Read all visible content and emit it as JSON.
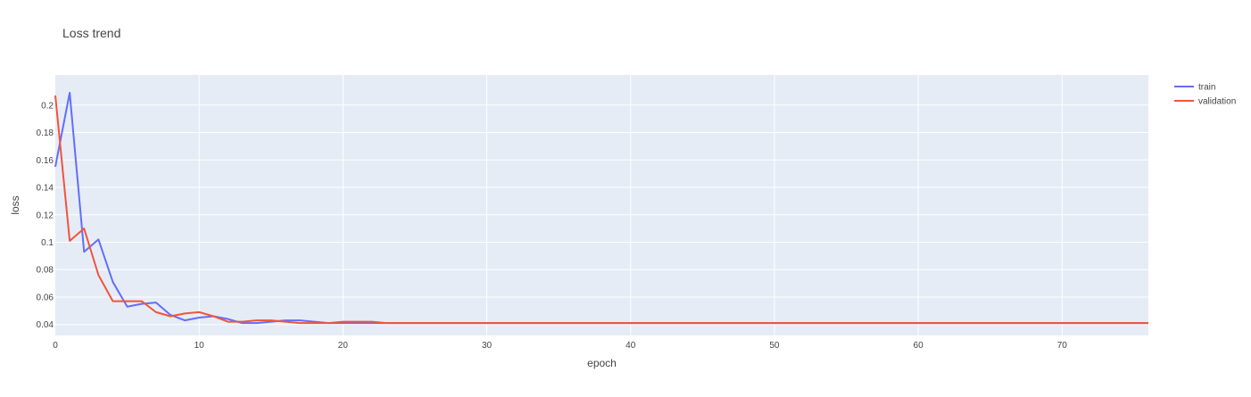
{
  "chart_data": {
    "type": "line",
    "title": "Loss trend",
    "xlabel": "epoch",
    "ylabel": "loss",
    "xlim": [
      0,
      76
    ],
    "ylim": [
      0.032,
      0.222
    ],
    "xticks": [
      0,
      10,
      20,
      30,
      40,
      50,
      60,
      70
    ],
    "yticks": [
      0.04,
      0.06,
      0.08,
      0.1,
      0.12,
      0.14,
      0.16,
      0.18,
      0.2
    ],
    "ytick_labels": [
      "0.04",
      "0.06",
      "0.08",
      "0.1",
      "0.12",
      "0.14",
      "0.16",
      "0.18",
      "0.2"
    ],
    "grid": true,
    "legend_position": "top-right",
    "background_color": "#E5ECF6",
    "series": [
      {
        "name": "train",
        "color": "#636EFA",
        "x": [
          0,
          1,
          2,
          3,
          4,
          5,
          6,
          7,
          8,
          9,
          10,
          11,
          12,
          13,
          14,
          15,
          16,
          17,
          18,
          19,
          20,
          21,
          22,
          23,
          24,
          25,
          26,
          27,
          28,
          29,
          30,
          31,
          32,
          33,
          34,
          35,
          36,
          37,
          38,
          39,
          40,
          41,
          42,
          43,
          44,
          45,
          46,
          47,
          48,
          49,
          50,
          51,
          52,
          53,
          54,
          55,
          56,
          57,
          58,
          59,
          60,
          61,
          62,
          63,
          64,
          65,
          66,
          67,
          68,
          69,
          70,
          71,
          72,
          73,
          74,
          75,
          76
        ],
        "values": [
          0.155,
          0.209,
          0.093,
          0.102,
          0.071,
          0.053,
          0.055,
          0.056,
          0.047,
          0.043,
          0.045,
          0.046,
          0.044,
          0.041,
          0.041,
          0.042,
          0.043,
          0.043,
          0.042,
          0.041,
          0.041,
          0.041,
          0.041,
          0.041,
          0.041,
          0.041,
          0.041,
          0.041,
          0.041,
          0.041,
          0.041,
          0.041,
          0.041,
          0.041,
          0.041,
          0.041,
          0.041,
          0.041,
          0.041,
          0.041,
          0.041,
          0.041,
          0.041,
          0.041,
          0.041,
          0.041,
          0.041,
          0.041,
          0.041,
          0.041,
          0.041,
          0.041,
          0.041,
          0.041,
          0.041,
          0.041,
          0.041,
          0.041,
          0.041,
          0.041,
          0.041,
          0.041,
          0.041,
          0.041,
          0.041,
          0.041,
          0.041,
          0.041,
          0.041,
          0.041,
          0.041,
          0.041,
          0.041,
          0.041,
          0.041,
          0.041,
          0.041
        ]
      },
      {
        "name": "validation",
        "color": "#EF553B",
        "x": [
          0,
          1,
          2,
          3,
          4,
          5,
          6,
          7,
          8,
          9,
          10,
          11,
          12,
          13,
          14,
          15,
          16,
          17,
          18,
          19,
          20,
          21,
          22,
          23,
          24,
          25,
          26,
          27,
          28,
          29,
          30,
          31,
          32,
          33,
          34,
          35,
          36,
          37,
          38,
          39,
          40,
          41,
          42,
          43,
          44,
          45,
          46,
          47,
          48,
          49,
          50,
          51,
          52,
          53,
          54,
          55,
          56,
          57,
          58,
          59,
          60,
          61,
          62,
          63,
          64,
          65,
          66,
          67,
          68,
          69,
          70,
          71,
          72,
          73,
          74,
          75,
          76
        ],
        "values": [
          0.207,
          0.101,
          0.11,
          0.076,
          0.057,
          0.057,
          0.057,
          0.049,
          0.046,
          0.048,
          0.049,
          0.046,
          0.042,
          0.042,
          0.043,
          0.043,
          0.042,
          0.041,
          0.041,
          0.041,
          0.042,
          0.042,
          0.042,
          0.041,
          0.041,
          0.041,
          0.041,
          0.041,
          0.041,
          0.041,
          0.041,
          0.041,
          0.041,
          0.041,
          0.041,
          0.041,
          0.041,
          0.041,
          0.041,
          0.041,
          0.041,
          0.041,
          0.041,
          0.041,
          0.041,
          0.041,
          0.041,
          0.041,
          0.041,
          0.041,
          0.041,
          0.041,
          0.041,
          0.041,
          0.041,
          0.041,
          0.041,
          0.041,
          0.041,
          0.041,
          0.041,
          0.041,
          0.041,
          0.041,
          0.041,
          0.041,
          0.041,
          0.041,
          0.041,
          0.041,
          0.041,
          0.041,
          0.041,
          0.041,
          0.041,
          0.041,
          0.041
        ]
      }
    ]
  }
}
